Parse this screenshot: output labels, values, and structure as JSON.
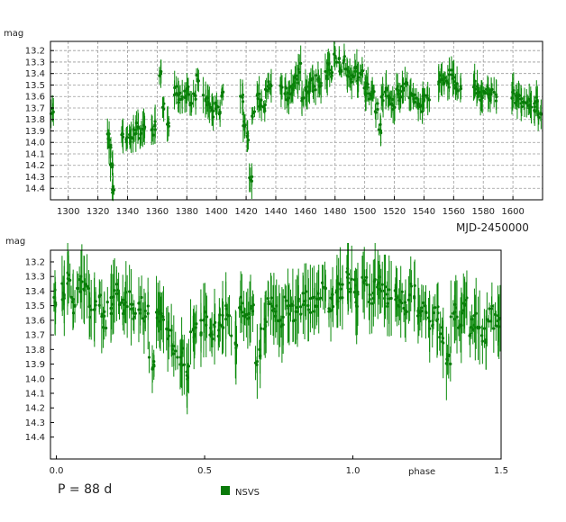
{
  "chart_data": [
    {
      "type": "scatter",
      "title": "",
      "xlabel": "MJD-2450000",
      "ylabel": "mag",
      "xlim": [
        1288,
        1620
      ],
      "ylim": [
        13.12,
        14.5
      ],
      "y_inverted": true,
      "grid": true,
      "x_ticks": [
        1300,
        1320,
        1340,
        1360,
        1380,
        1400,
        1420,
        1440,
        1460,
        1480,
        1500,
        1520,
        1540,
        1560,
        1580,
        1600
      ],
      "y_ticks": [
        13.2,
        13.3,
        13.4,
        13.5,
        13.6,
        13.7,
        13.8,
        13.9,
        14.0,
        14.1,
        14.2,
        14.3,
        14.4
      ],
      "y_tick_labels": [
        "13.2",
        "13.3",
        "13.4",
        "13.5",
        "13.6",
        "13.7",
        "13.8",
        "13.9",
        "14.0",
        "14.1",
        "14.2",
        "14.3",
        "14.4"
      ],
      "series": [
        {
          "name": "NSVS",
          "color": "#0a7a0a",
          "x": [
            1289,
            1327,
            1328,
            1329,
            1330,
            1337,
            1339,
            1341,
            1343,
            1345,
            1347,
            1349,
            1351,
            1357,
            1359,
            1362,
            1364,
            1367,
            1372,
            1374,
            1376,
            1379,
            1381,
            1383,
            1385,
            1387,
            1392,
            1394,
            1396,
            1398,
            1400,
            1402,
            1404,
            1417,
            1419,
            1421,
            1423,
            1425,
            1428,
            1430,
            1432,
            1434,
            1436,
            1444,
            1446,
            1448,
            1450,
            1452,
            1454,
            1456,
            1458,
            1460,
            1462,
            1464,
            1466,
            1468,
            1470,
            1474,
            1476,
            1478,
            1480,
            1482,
            1484,
            1486,
            1488,
            1490,
            1492,
            1494,
            1496,
            1498,
            1500,
            1502,
            1504,
            1506,
            1508,
            1510,
            1512,
            1514,
            1516,
            1518,
            1520,
            1522,
            1524,
            1526,
            1528,
            1530,
            1532,
            1534,
            1536,
            1538,
            1540,
            1543,
            1550,
            1552,
            1554,
            1556,
            1558,
            1560,
            1562,
            1564,
            1574,
            1576,
            1578,
            1580,
            1582,
            1584,
            1586,
            1588,
            1600,
            1602,
            1604,
            1606,
            1608,
            1610,
            1612,
            1614,
            1616,
            1618
          ],
          "y": [
            13.72,
            13.95,
            14.05,
            14.2,
            14.42,
            13.95,
            13.98,
            13.92,
            13.96,
            13.9,
            13.85,
            13.95,
            13.88,
            13.92,
            13.85,
            13.4,
            13.7,
            13.85,
            13.55,
            13.62,
            13.6,
            13.58,
            13.55,
            13.65,
            13.6,
            13.45,
            13.62,
            13.65,
            13.7,
            13.75,
            13.68,
            13.72,
            13.6,
            13.62,
            13.85,
            13.95,
            14.3,
            13.75,
            13.6,
            13.65,
            13.7,
            13.55,
            13.5,
            13.52,
            13.55,
            13.6,
            13.55,
            13.5,
            13.45,
            13.35,
            13.6,
            13.55,
            13.55,
            13.48,
            13.52,
            13.45,
            13.5,
            13.42,
            13.35,
            13.4,
            13.25,
            13.3,
            13.35,
            13.28,
            13.4,
            13.42,
            13.45,
            13.35,
            13.45,
            13.4,
            13.55,
            13.5,
            13.6,
            13.55,
            13.7,
            13.88,
            13.6,
            13.55,
            13.6,
            13.65,
            13.7,
            13.55,
            13.6,
            13.52,
            13.5,
            13.58,
            13.6,
            13.62,
            13.65,
            13.7,
            13.6,
            13.6,
            13.48,
            13.42,
            13.45,
            13.5,
            13.4,
            13.45,
            13.52,
            13.55,
            13.5,
            13.55,
            13.6,
            13.58,
            13.55,
            13.62,
            13.55,
            13.6,
            13.58,
            13.62,
            13.6,
            13.65,
            13.62,
            13.65,
            13.68,
            13.7,
            13.62,
            13.75
          ]
        }
      ]
    },
    {
      "type": "scatter",
      "title": "",
      "xlabel": "phase",
      "ylabel": "mag",
      "xlim": [
        -0.02,
        1.5
      ],
      "ylim": [
        13.12,
        14.55
      ],
      "y_inverted": true,
      "grid": false,
      "x_ticks": [
        0.0,
        0.5,
        1.0,
        1.5
      ],
      "x_tick_labels": [
        "0.0",
        "0.5",
        "1.0",
        "1.5"
      ],
      "y_ticks": [
        13.2,
        13.3,
        13.4,
        13.5,
        13.6,
        13.7,
        13.8,
        13.9,
        14.0,
        14.1,
        14.2,
        14.3,
        14.4
      ],
      "y_tick_labels": [
        "13.2",
        "13.3",
        "13.4",
        "13.5",
        "13.6",
        "13.7",
        "13.8",
        "13.9",
        "14.0",
        "14.1",
        "14.2",
        "14.3",
        "14.4"
      ],
      "legend": {
        "position": "bottom-center",
        "entries": [
          "NSVS"
        ]
      },
      "series": [
        {
          "name": "NSVS",
          "color": "#0a7a0a",
          "x": [
            0.0,
            0.02,
            0.04,
            0.06,
            0.08,
            0.1,
            0.12,
            0.14,
            0.16,
            0.18,
            0.2,
            0.22,
            0.24,
            0.26,
            0.28,
            0.3,
            0.32,
            0.34,
            0.36,
            0.38,
            0.4,
            0.42,
            0.44,
            0.46,
            0.48,
            0.5,
            0.52,
            0.54,
            0.56,
            0.58,
            0.6,
            0.62,
            0.64,
            0.66,
            0.68,
            0.7,
            0.72,
            0.74,
            0.76,
            0.78,
            0.8,
            0.82,
            0.84,
            0.86,
            0.88,
            0.9,
            0.92,
            0.94,
            0.96,
            0.98,
            1.0,
            1.02,
            1.04,
            1.06,
            1.08,
            1.1,
            1.12,
            1.14,
            1.16,
            1.18,
            1.2,
            1.22,
            1.24,
            1.26,
            1.28,
            1.3,
            1.32,
            1.34,
            1.36,
            1.38,
            1.4,
            1.42,
            1.44,
            1.46,
            1.48,
            1.5
          ],
          "y": [
            13.45,
            13.4,
            13.3,
            13.5,
            13.35,
            13.4,
            13.55,
            13.45,
            13.6,
            13.5,
            13.4,
            13.5,
            13.45,
            13.55,
            13.5,
            13.55,
            13.9,
            13.6,
            13.55,
            13.7,
            13.8,
            13.85,
            13.95,
            13.7,
            13.65,
            13.6,
            13.7,
            13.65,
            13.6,
            13.55,
            13.75,
            13.5,
            13.6,
            13.55,
            13.85,
            13.6,
            13.5,
            13.55,
            13.6,
            13.5,
            13.55,
            13.5,
            13.45,
            13.5,
            13.45,
            13.4,
            13.5,
            13.45,
            13.4,
            13.3,
            13.35,
            13.45,
            13.3,
            13.45,
            13.35,
            13.4,
            13.45,
            13.4,
            13.45,
            13.5,
            13.4,
            13.55,
            13.5,
            13.6,
            13.55,
            13.7,
            13.85,
            13.55,
            13.6,
            13.5,
            13.65,
            13.6,
            13.7,
            13.55,
            13.6,
            13.6
          ]
        }
      ]
    }
  ],
  "labels": {
    "top_ylabel": "mag",
    "top_xlabel": "MJD-2450000",
    "bottom_ylabel": "mag",
    "bottom_xlabel": "phase",
    "period": "P = 88 d",
    "legend_entry": "NSVS"
  }
}
